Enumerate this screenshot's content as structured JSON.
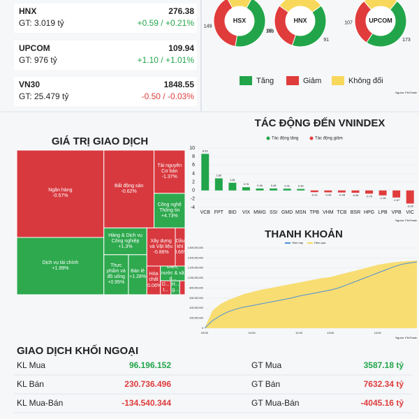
{
  "indices": [
    {
      "name": "HNX",
      "gt": "GT: 3.019 tỷ",
      "value": "276.38",
      "change": "+0.59 / +0.21%",
      "color": "#22a54a"
    },
    {
      "name": "UPCOM",
      "gt": "GT: 976 tỷ",
      "value": "109.94",
      "change": "+1.10 / +1.01%",
      "color": "#22a54a"
    },
    {
      "name": "VN30",
      "gt": "GT: 25.479 tỷ",
      "value": "1848.55",
      "change": "-0.50 / -0.03%",
      "color": "#e03c3c"
    }
  ],
  "breadth": {
    "type": "pie",
    "legend": [
      {
        "name": "Tăng",
        "color": "#22a54a"
      },
      {
        "name": "Giảm",
        "color": "#e03c3c"
      },
      {
        "name": "Không đổi",
        "color": "#f8d85a"
      }
    ],
    "source": "Nguồn: FiinTrade",
    "charts": [
      {
        "name": "HSX",
        "values": [
          169,
          149,
          60
        ]
      },
      {
        "name": "HNX",
        "values": [
          91,
          68,
          68
        ]
      },
      {
        "name": "UPCOM",
        "values": [
          173,
          107,
          80
        ]
      }
    ]
  },
  "treemap": {
    "type": "treemap",
    "title": "GIÁ TRỊ GIAO DỊCH",
    "cells": [
      {
        "name": "Ngân hàng",
        "change": "-0.57%",
        "value": 15500,
        "color": "#d8393f"
      },
      {
        "name": "Dịch vụ tài chính",
        "change": "+1.99%",
        "value": 10170,
        "color": "#2ea94e"
      },
      {
        "name": "Bất động sản",
        "change": "-0.62%",
        "value": 7956,
        "color": "#d8393f"
      },
      {
        "name": "Tài nguyên Cơ bản",
        "change": "-1.37%",
        "value": 2730,
        "color": "#d8393f"
      },
      {
        "name": "Công nghệ Thông tin",
        "change": "+4.73%",
        "value": 2184,
        "color": "#2ea94e"
      },
      {
        "name": "Hàng & Dịch vụ Công nghiệp",
        "change": "+1.3%",
        "value": 2350,
        "color": "#2ea94e"
      },
      {
        "name": "Thực phẩm và đồ uống",
        "change": "+0.95%",
        "value": 2000,
        "color": "#2ea94e"
      },
      {
        "name": "Bán lẻ",
        "change": "+1.28%",
        "value": 1500,
        "color": "#2ea94e"
      },
      {
        "name": "Xây dựng và Vật liệu",
        "change": "-0.86%",
        "value": 2209,
        "color": "#d8393f"
      },
      {
        "name": "Dầu khí",
        "change": "-0.66%",
        "value": 760,
        "color": "#d8393f"
      },
      {
        "name": "Hóa chất",
        "change": "-0.06%",
        "value": 790,
        "color": "#d8393f"
      },
      {
        "name": "Điện, nước & xă d...",
        "value": 740,
        "color": "#2ea94e"
      },
      {
        "name": "D... t...",
        "value": 300,
        "color": "#d8393f"
      },
      {
        "name": "H... g...",
        "value": 250,
        "color": "#2ea94e"
      },
      {
        "value": 150,
        "color": "#d8393f"
      }
    ]
  },
  "impact": {
    "type": "bar",
    "title": "TÁC ĐỘNG ĐẾN VNINDEX",
    "legend": [
      {
        "name": "Tác động tăng",
        "color": "#22a54a"
      },
      {
        "name": "Tác động giảm",
        "color": "#e03c3c"
      }
    ],
    "categories": [
      "VCB",
      "FPT",
      "BID",
      "VIX",
      "MWG",
      "SSI",
      "GMD",
      "MSN",
      "TPB",
      "VHM",
      "TCB",
      "BSR",
      "HPG",
      "LPB",
      "VPB",
      "VIC"
    ],
    "values": [
      8.63,
      2.85,
      1.81,
      0.76,
      0.46,
      0.46,
      0.41,
      0.35,
      -0.41,
      -0.45,
      -0.48,
      -0.55,
      -0.76,
      -1.16,
      -1.67,
      -3.09
    ],
    "ylim": [
      -4,
      10
    ],
    "yticks": [
      -4,
      -2,
      0,
      2,
      4,
      6,
      8,
      10
    ],
    "source": "Nguồn: FiinTrade"
  },
  "liquidity": {
    "type": "area",
    "title": "THANH KHOẢN",
    "categories": [
      "09:00",
      null,
      null,
      null,
      null,
      null,
      "10:00",
      null,
      null,
      null,
      null,
      null,
      "11:00",
      null,
      null,
      null,
      "13:00",
      null,
      null,
      null,
      null,
      null,
      "14:00",
      null,
      null,
      null,
      null,
      null
    ],
    "series": [
      {
        "name": "Hôm nay",
        "color": "#4a90d9",
        "values": [
          0,
          150000000,
          250000000,
          330000000,
          380000000,
          420000000,
          450000000,
          480000000,
          510000000,
          540000000,
          570000000,
          600000000,
          640000000,
          670000000,
          700000000,
          730000000,
          760000000,
          800000000,
          860000000,
          920000000,
          980000000,
          1040000000,
          1100000000,
          1160000000,
          1220000000,
          1270000000,
          1300000000,
          1320000000
        ]
      },
      {
        "name": "Hôm qua",
        "color": "#f8d85a",
        "values": [
          0,
          350000000,
          480000000,
          560000000,
          620000000,
          680000000,
          720000000,
          760000000,
          790000000,
          820000000,
          850000000,
          880000000,
          910000000,
          940000000,
          970000000,
          1000000000,
          1020000000,
          1060000000,
          1100000000,
          1140000000,
          1180000000,
          1220000000,
          1260000000,
          1290000000,
          1310000000,
          1330000000,
          1340000000,
          1350000000
        ]
      }
    ],
    "ylim": [
      0,
      1600000000
    ],
    "yticks": [
      0,
      {
        "value": 200000000,
        "label": "200,000,000"
      },
      {
        "value": 400000000,
        "label": "400,000,000"
      },
      {
        "value": 600000000,
        "label": "600,000,000"
      },
      {
        "value": 800000000,
        "label": "800,000,000"
      },
      {
        "value": 1000000000,
        "label": "1,000,000,000"
      },
      {
        "value": 1200000000,
        "label": "1,200,000,000"
      },
      {
        "value": 1400000000,
        "label": "1,400,000,000"
      },
      {
        "value": 1600000000,
        "label": "1,600,000,000"
      }
    ],
    "source": "Nguồn: FiinTrade"
  },
  "foreign": {
    "title": "GIAO DỊCH KHỐI NGOẠI",
    "left": [
      {
        "label": "KL Mua",
        "value": "96.196.152",
        "color": "#22a54a"
      },
      {
        "label": "KL Bán",
        "value": "230.736.496",
        "color": "#e03c3c"
      },
      {
        "label": "KL Mua-Bán",
        "value": "-134.540.344",
        "color": "#e03c3c"
      }
    ],
    "right": [
      {
        "label": "GT Mua",
        "value": "3587.18 tỷ",
        "color": "#22a54a"
      },
      {
        "label": "GT Bán",
        "value": "7632.34 tỷ",
        "color": "#e03c3c"
      },
      {
        "label": "GT Mua-Bán",
        "value": "-4045.16 tỷ",
        "color": "#e03c3c"
      }
    ]
  }
}
